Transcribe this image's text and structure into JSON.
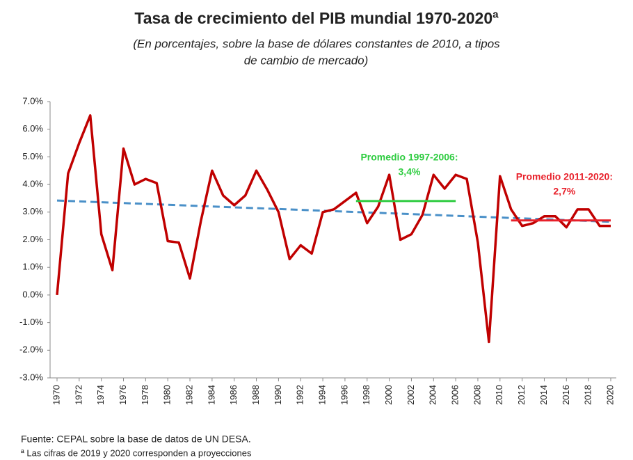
{
  "chart_data": {
    "type": "line",
    "title": "Tasa de crecimiento del PIB mundial 1970-2020ª",
    "subtitle": [
      "(En porcentajes, sobre la base de dólares constantes de 2010, a tipos",
      "de cambio de mercado)"
    ],
    "x": [
      1970,
      1971,
      1972,
      1973,
      1974,
      1975,
      1976,
      1977,
      1978,
      1979,
      1980,
      1981,
      1982,
      1983,
      1984,
      1985,
      1986,
      1987,
      1988,
      1989,
      1990,
      1991,
      1992,
      1993,
      1994,
      1995,
      1996,
      1997,
      1998,
      1999,
      2000,
      2001,
      2002,
      2003,
      2004,
      2005,
      2006,
      2007,
      2008,
      2009,
      2010,
      2011,
      2012,
      2013,
      2014,
      2015,
      2016,
      2017,
      2018,
      2019,
      2020
    ],
    "values": [
      0.0,
      4.4,
      5.5,
      6.5,
      2.2,
      0.9,
      5.3,
      4.0,
      4.2,
      4.05,
      1.95,
      1.9,
      0.6,
      2.7,
      4.5,
      3.6,
      3.25,
      3.6,
      4.5,
      3.8,
      3.0,
      1.3,
      1.8,
      1.5,
      3.0,
      3.1,
      3.4,
      3.7,
      2.6,
      3.2,
      4.35,
      2.0,
      2.2,
      2.9,
      4.35,
      3.85,
      4.35,
      4.2,
      1.9,
      -1.7,
      4.3,
      3.1,
      2.5,
      2.6,
      2.85,
      2.85,
      2.45,
      3.1,
      3.1,
      2.5,
      2.5
    ],
    "color": "#c00000",
    "trend": {
      "x": [
        1970,
        2020
      ],
      "values": [
        3.42,
        2.65
      ],
      "color": "#4a90c8"
    },
    "averages": [
      {
        "label": [
          "Promedio 1997-2006:",
          "3,4%"
        ],
        "x": [
          1997,
          2006
        ],
        "value": 3.4,
        "color": "#2ecc40"
      },
      {
        "label": [
          "Promedio 2011-2020:",
          "2,7%"
        ],
        "x": [
          2011,
          2020
        ],
        "value": 2.7,
        "color": "#e8202a"
      }
    ],
    "xlim": [
      1970,
      2020
    ],
    "xticks": [
      1970,
      1972,
      1974,
      1976,
      1978,
      1980,
      1982,
      1984,
      1986,
      1988,
      1990,
      1992,
      1994,
      1996,
      1998,
      2000,
      2002,
      2004,
      2006,
      2008,
      2010,
      2012,
      2014,
      2016,
      2018,
      2020
    ],
    "ylim": [
      -3,
      7
    ],
    "yticks": [
      {
        "value": 7,
        "label": "7.0%"
      },
      {
        "value": 6,
        "label": "6.0%"
      },
      {
        "value": 5,
        "label": "5.0%"
      },
      {
        "value": 4,
        "label": "4.0%"
      },
      {
        "value": 3,
        "label": "3.0%"
      },
      {
        "value": 2,
        "label": "2.0%"
      },
      {
        "value": 1,
        "label": "1.0%"
      },
      {
        "value": 0,
        "label": "0.0%"
      },
      {
        "value": -1,
        "label": "-1.0%"
      },
      {
        "value": -2,
        "label": "-2.0%"
      },
      {
        "value": -3,
        "label": "-3.0%"
      }
    ],
    "notes": [
      "Fuente: CEPAL sobre la base de datos de UN DESA.",
      "ª Las cifras de 2019 y 2020 corresponden a proyecciones"
    ]
  }
}
